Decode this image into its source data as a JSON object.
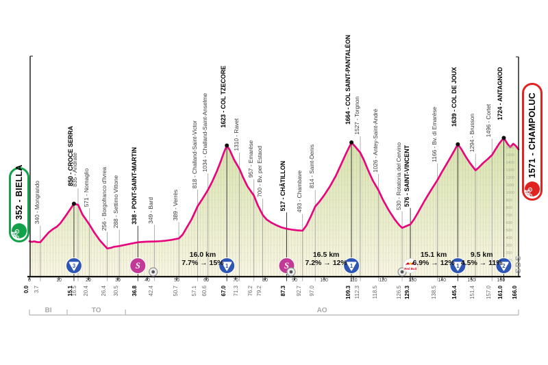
{
  "race": {
    "start_label": "352 - BIELLA",
    "finish_label": "1571 - CHAMPOLUC",
    "watermark": "SDS",
    "start_color": "#12a14b",
    "finish_color": "#e02321"
  },
  "colors": {
    "profile_line": "#e6067e",
    "fill_top": "#d7e2ae",
    "fill_bottom": "#f8f5e4",
    "grid": "#9aa46a",
    "gpm_blue": "#2f55b4",
    "sprint_magenta": "#c23a96",
    "redbull_red": "#d6001c",
    "axis_black": "#111111",
    "callout_gray": "#9a9a9a",
    "province_gray": "#b5b5b5"
  },
  "chart_data": {
    "type": "area",
    "x_unit": "km",
    "y_unit": "m",
    "x_range": [
      0,
      166
    ],
    "x_ticks": [
      0,
      10,
      20,
      30,
      40,
      50,
      60,
      70,
      80,
      90,
      100,
      110,
      120,
      130,
      140,
      150,
      160
    ],
    "elevation_scale": [
      100,
      200,
      300,
      400,
      500,
      600,
      700,
      800,
      900,
      1000,
      1100,
      1200,
      1300,
      1400,
      1500,
      1600
    ],
    "waypoints": [
      {
        "km": 0.0,
        "elev": 352,
        "name": "",
        "major": true,
        "summit": false
      },
      {
        "km": 3.7,
        "elev": 340,
        "name": "340 - Mongrando",
        "major": false,
        "summit": false
      },
      {
        "km": 15.1,
        "elev": 850,
        "name": "850 - CROCE SERRA",
        "major": true,
        "summit": true
      },
      {
        "km": 16.5,
        "elev": 835,
        "name": "835 - Andrate",
        "major": false,
        "summit": false
      },
      {
        "km": 20.4,
        "elev": 571,
        "name": "571 - Nomaglio",
        "major": false,
        "summit": false
      },
      {
        "km": 26.4,
        "elev": 256,
        "name": "256 - Borgofranco d'Ivrea",
        "major": false,
        "summit": false
      },
      {
        "km": 30.5,
        "elev": 288,
        "name": "288 - Settimo Vittone",
        "major": false,
        "summit": false
      },
      {
        "km": 36.8,
        "elev": 338,
        "name": "338 - PONT-SAINT-MARTIN",
        "major": true,
        "summit": false
      },
      {
        "km": 42.4,
        "elev": 349,
        "name": "349 - Bard",
        "major": false,
        "summit": false
      },
      {
        "km": 50.7,
        "elev": 389,
        "name": "389 - Verrès",
        "major": false,
        "summit": false
      },
      {
        "km": 57.1,
        "elev": 818,
        "name": "818 - Challand-Saint-Victor",
        "major": false,
        "summit": false
      },
      {
        "km": 60.6,
        "elev": 1034,
        "name": "1034 - Challand-Saint-Anselme",
        "major": false,
        "summit": false
      },
      {
        "km": 67.0,
        "elev": 1623,
        "name": "1623 - COL TZECORE",
        "major": true,
        "summit": true
      },
      {
        "km": 71.3,
        "elev": 1310,
        "name": "1310 - Ravet",
        "major": false,
        "summit": false
      },
      {
        "km": 76.2,
        "elev": 957,
        "name": "957 - Emarèse",
        "major": false,
        "summit": false
      },
      {
        "km": 79.2,
        "elev": 700,
        "name": "700 - Bv. per Estaod",
        "major": false,
        "summit": false
      },
      {
        "km": 87.3,
        "elev": 517,
        "name": "517 - CHÂTILLON",
        "major": true,
        "summit": false
      },
      {
        "km": 92.7,
        "elev": 493,
        "name": "493 - Chambave",
        "major": false,
        "summit": false
      },
      {
        "km": 97.0,
        "elev": 814,
        "name": "814 - Saint-Denis",
        "major": false,
        "summit": false
      },
      {
        "km": 109.3,
        "elev": 1664,
        "name": "1664 - COL SAINT-PANTALÉON",
        "major": true,
        "summit": true
      },
      {
        "km": 112.3,
        "elev": 1527,
        "name": "1527 - Torgnon",
        "major": false,
        "summit": false
      },
      {
        "km": 118.5,
        "elev": 1026,
        "name": "1026 - Antey-Saint-André",
        "major": false,
        "summit": false
      },
      {
        "km": 126.5,
        "elev": 530,
        "name": "530 - Rotatoria del Cervino",
        "major": false,
        "summit": false
      },
      {
        "km": 129.3,
        "elev": 576,
        "name": "576 - SAINT-VINCENT",
        "major": true,
        "summit": false
      },
      {
        "km": 138.5,
        "elev": 1166,
        "name": "1166 - Bv. di Emarèse",
        "major": false,
        "summit": false
      },
      {
        "km": 145.4,
        "elev": 1639,
        "name": "1639 - COL DE JOUX",
        "major": true,
        "summit": true
      },
      {
        "km": 151.4,
        "elev": 1294,
        "name": "1294 - Brusson",
        "major": false,
        "summit": false
      },
      {
        "km": 157.0,
        "elev": 1496,
        "name": "1496 - Cortet",
        "major": false,
        "summit": false
      },
      {
        "km": 161.0,
        "elev": 1724,
        "name": "1724 - ANTAGNOD",
        "major": true,
        "summit": true
      },
      {
        "km": 166.0,
        "elev": 1571,
        "name": "",
        "major": true,
        "summit": false
      }
    ],
    "profile": [
      [
        0,
        352
      ],
      [
        0.8,
        344
      ],
      [
        1.6,
        350
      ],
      [
        2.6,
        341
      ],
      [
        3.7,
        340
      ],
      [
        5,
        400
      ],
      [
        6.5,
        468
      ],
      [
        8,
        515
      ],
      [
        9.3,
        545
      ],
      [
        10.5,
        592
      ],
      [
        12,
        672
      ],
      [
        13.5,
        758
      ],
      [
        15.1,
        850
      ],
      [
        16.5,
        835
      ],
      [
        18,
        706
      ],
      [
        20.4,
        571
      ],
      [
        22,
        468
      ],
      [
        24,
        358
      ],
      [
        26.4,
        256
      ],
      [
        27.5,
        263
      ],
      [
        28.5,
        276
      ],
      [
        30.5,
        288
      ],
      [
        32,
        301
      ],
      [
        34,
        316
      ],
      [
        36.8,
        338
      ],
      [
        38,
        342
      ],
      [
        40,
        346
      ],
      [
        42.4,
        349
      ],
      [
        44,
        352
      ],
      [
        46,
        358
      ],
      [
        48,
        369
      ],
      [
        50.7,
        389
      ],
      [
        52,
        441
      ],
      [
        53.5,
        541
      ],
      [
        55,
        641
      ],
      [
        57.1,
        818
      ],
      [
        58.5,
        901
      ],
      [
        60.6,
        1034
      ],
      [
        62,
        1141
      ],
      [
        63.5,
        1271
      ],
      [
        65,
        1421
      ],
      [
        66,
        1531
      ],
      [
        67,
        1623
      ],
      [
        68,
        1561
      ],
      [
        69.5,
        1431
      ],
      [
        71.3,
        1310
      ],
      [
        72.5,
        1201
      ],
      [
        74,
        1081
      ],
      [
        76.2,
        957
      ],
      [
        77.5,
        831
      ],
      [
        79.2,
        700
      ],
      [
        80.5,
        641
      ],
      [
        82,
        601
      ],
      [
        84,
        561
      ],
      [
        85.5,
        536
      ],
      [
        87.3,
        517
      ],
      [
        89,
        506
      ],
      [
        91,
        496
      ],
      [
        92.7,
        493
      ],
      [
        94,
        561
      ],
      [
        95.5,
        681
      ],
      [
        97,
        814
      ],
      [
        98.5,
        881
      ],
      [
        100,
        961
      ],
      [
        102,
        1081
      ],
      [
        104,
        1221
      ],
      [
        106,
        1391
      ],
      [
        107.5,
        1521
      ],
      [
        109.3,
        1664
      ],
      [
        110.5,
        1611
      ],
      [
        112.3,
        1527
      ],
      [
        113.5,
        1431
      ],
      [
        115,
        1291
      ],
      [
        116.5,
        1161
      ],
      [
        118.5,
        1026
      ],
      [
        120,
        901
      ],
      [
        122,
        761
      ],
      [
        124,
        641
      ],
      [
        125.5,
        566
      ],
      [
        126.5,
        530
      ],
      [
        127.5,
        546
      ],
      [
        129.3,
        576
      ],
      [
        130.5,
        641
      ],
      [
        132,
        741
      ],
      [
        134,
        881
      ],
      [
        136,
        1011
      ],
      [
        138.5,
        1166
      ],
      [
        140,
        1271
      ],
      [
        141.5,
        1371
      ],
      [
        143,
        1471
      ],
      [
        144.3,
        1561
      ],
      [
        145.4,
        1639
      ],
      [
        146.5,
        1581
      ],
      [
        148,
        1481
      ],
      [
        149.5,
        1391
      ],
      [
        151.4,
        1294
      ],
      [
        152.5,
        1331
      ],
      [
        154,
        1391
      ],
      [
        155.5,
        1441
      ],
      [
        157,
        1496
      ],
      [
        158,
        1561
      ],
      [
        159.5,
        1651
      ],
      [
        161,
        1724
      ],
      [
        162.3,
        1641
      ],
      [
        163.2,
        1601
      ],
      [
        164.2,
        1646
      ],
      [
        165,
        1621
      ],
      [
        166,
        1571
      ]
    ],
    "climb_stats": [
      {
        "center_km": 58.8,
        "length": "16.0 km",
        "avg": "7.7%",
        "max": "15%"
      },
      {
        "center_km": 100.7,
        "length": "16.5 km",
        "avg": "7.2%",
        "max": "12%"
      },
      {
        "center_km": 137.2,
        "length": "15.1 km",
        "avg": "6.9%",
        "max": "12%"
      },
      {
        "center_km": 153.5,
        "length": "9.5 km",
        "avg": "4.5%",
        "max": "11%"
      }
    ],
    "markers": [
      {
        "km": 15.1,
        "type": "gpm",
        "label": "3"
      },
      {
        "km": 36.8,
        "type": "sprint",
        "label": "S"
      },
      {
        "km": 42.0,
        "type": "roundabout",
        "label": ""
      },
      {
        "km": 67.0,
        "type": "gpm",
        "label": "1"
      },
      {
        "km": 87.3,
        "type": "sprint",
        "label": "S"
      },
      {
        "km": 88.8,
        "type": "roundabout",
        "label": ""
      },
      {
        "km": 109.3,
        "type": "gpm",
        "label": "1"
      },
      {
        "km": 126.5,
        "type": "roundabout",
        "label": ""
      },
      {
        "km": 129.3,
        "type": "redbull",
        "label": "Red Bull"
      },
      {
        "km": 145.4,
        "type": "gpm",
        "label": "1"
      },
      {
        "km": 161.0,
        "type": "gpm",
        "label": "2"
      }
    ],
    "provinces": [
      {
        "label": "BI",
        "from_km": 0,
        "to_km": 12.8
      },
      {
        "label": "TO",
        "from_km": 12.8,
        "to_km": 32.6
      },
      {
        "label": "AO",
        "from_km": 32.6,
        "to_km": 166
      }
    ]
  }
}
